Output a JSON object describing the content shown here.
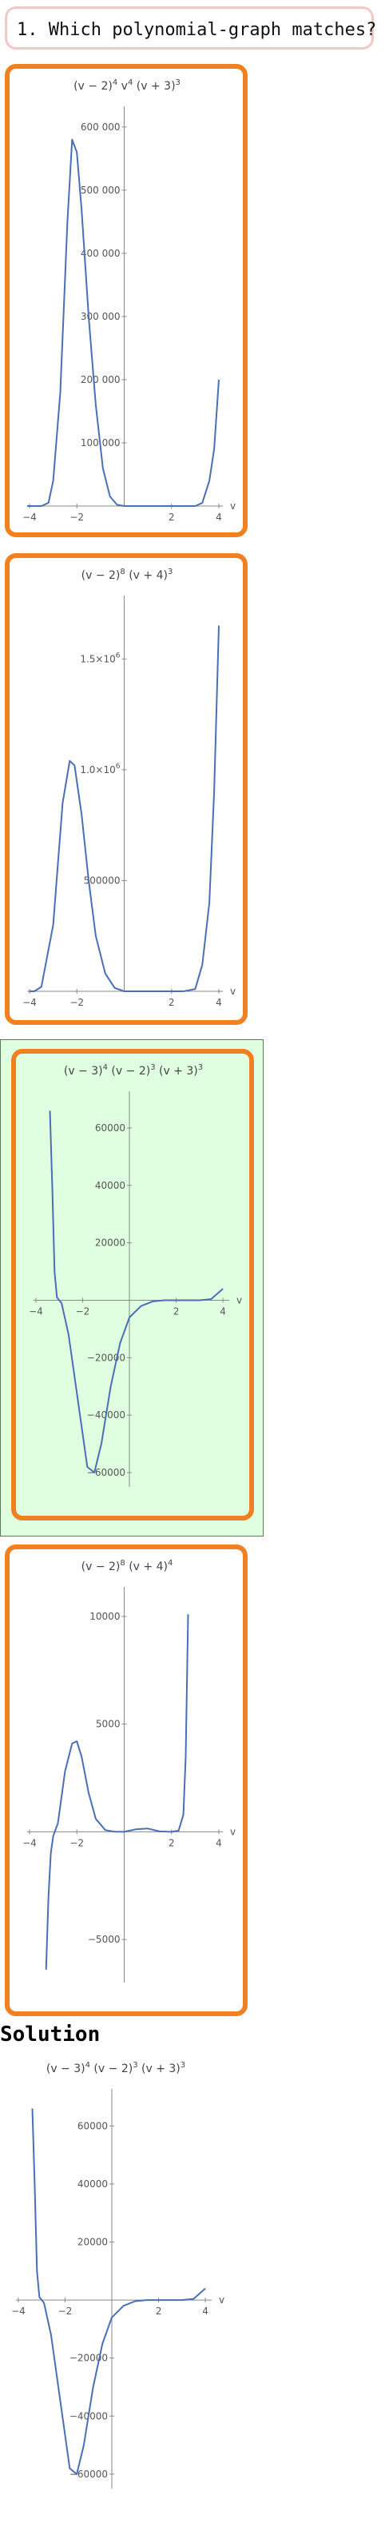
{
  "question": {
    "text": "1. Which polynomial-graph matches?"
  },
  "solution": {
    "heading": "Solution"
  },
  "colors": {
    "card_border": "#f08020",
    "selected_bg": "#e0ffe0",
    "curve": "#4a6fb5",
    "question_border": "#f4c7c7"
  },
  "chart_data": [
    {
      "type": "line",
      "title_base": [
        "(v − 2)",
        "4",
        " v",
        "4",
        " (v + 3)",
        "3"
      ],
      "xlabel": "v",
      "x_ticks": [
        "−4",
        "−2",
        "2",
        "4"
      ],
      "y_ticks": [
        "100 000",
        "200 000",
        "300 000",
        "400 000",
        "500 000",
        "600 000"
      ],
      "series": [
        {
          "x": [
            -4.1,
            -3.8,
            -3.5,
            -3.2,
            -3.0,
            -2.7,
            -2.4,
            -2.2,
            -2.0,
            -1.8,
            -1.5,
            -1.2,
            -0.9,
            -0.6,
            -0.3,
            0,
            0.5,
            1,
            1.5,
            2,
            2.5,
            3,
            3.3,
            3.6,
            3.8,
            4.0
          ],
          "y": [
            0,
            0,
            0,
            5000,
            40000,
            180000,
            450000,
            580000,
            560000,
            470000,
            300000,
            160000,
            60000,
            15000,
            2000,
            0,
            0,
            0,
            0,
            0,
            0,
            0,
            5000,
            40000,
            90000,
            200000
          ]
        }
      ],
      "xlim": [
        -4.1,
        4.0
      ],
      "ylim": [
        0,
        620000
      ]
    },
    {
      "type": "line",
      "title_base": [
        "(v − 2)",
        "8",
        " (v + 4)",
        "3"
      ],
      "xlabel": "v",
      "x_ticks": [
        "−4",
        "−2",
        "2",
        "4"
      ],
      "y_ticks": [
        "500000",
        "1.0×10",
        "1.5×10"
      ],
      "series": [
        {
          "x": [
            -4,
            -3.8,
            -3.5,
            -3.0,
            -2.6,
            -2.3,
            -2.1,
            -1.8,
            -1.5,
            -1.2,
            -0.8,
            -0.4,
            0,
            0.5,
            1,
            1.5,
            2,
            2.5,
            3.0,
            3.3,
            3.6,
            3.8,
            4.0
          ],
          "y": [
            0,
            0,
            20000,
            300000,
            850000,
            1040000,
            1020000,
            800000,
            500000,
            250000,
            80000,
            15000,
            0,
            0,
            0,
            0,
            0,
            0,
            10000,
            120000,
            400000,
            900000,
            1650000
          ]
        }
      ],
      "xlim": [
        -4.1,
        4.0
      ],
      "ylim": [
        0,
        1750000
      ]
    },
    {
      "type": "line",
      "title_base": [
        "(v − 3)",
        "4",
        " (v − 2)",
        "3",
        " (v + 3)",
        "3"
      ],
      "xlabel": "v",
      "x_ticks": [
        "−4",
        "−2",
        "2",
        "4"
      ],
      "y_ticks": [
        "−60000",
        "−40000",
        "−20000",
        "20000",
        "40000",
        "60000"
      ],
      "series": [
        {
          "x": [
            -3.4,
            -3.3,
            -3.2,
            -3.1,
            -3.0,
            -2.9,
            -2.6,
            -2.2,
            -1.8,
            -1.5,
            -1.2,
            -0.8,
            -0.4,
            0,
            0.5,
            1,
            1.5,
            2,
            2.5,
            3,
            3.5,
            4.0
          ],
          "y": [
            66000,
            40000,
            10000,
            1000,
            0,
            -1000,
            -12000,
            -35000,
            -58000,
            -60000,
            -50000,
            -30000,
            -15000,
            -6000,
            -2000,
            -400,
            -10,
            0,
            0,
            0,
            400,
            4000
          ]
        }
      ],
      "xlim": [
        -4.1,
        4.1
      ],
      "ylim": [
        -65000,
        70000
      ]
    },
    {
      "type": "line",
      "title_base": [
        "(v − 2)",
        "8",
        " (v + 4)",
        "4"
      ],
      "xlabel": "v",
      "x_ticks": [
        "−4",
        "−2",
        "2",
        "4"
      ],
      "y_ticks": [
        "−5000",
        "5000",
        "10000"
      ],
      "series": [
        {
          "x": [
            -3.3,
            -3.2,
            -3.1,
            -3.0,
            -2.8,
            -2.5,
            -2.2,
            -2.0,
            -1.8,
            -1.5,
            -1.2,
            -0.8,
            -0.4,
            0,
            0.5,
            1,
            1.5,
            2,
            2.3,
            2.5,
            2.6,
            2.7
          ],
          "y": [
            -6400,
            -3000,
            -1000,
            -200,
            400,
            2800,
            4100,
            4200,
            3500,
            1800,
            600,
            80,
            5,
            0,
            120,
            150,
            20,
            0,
            50,
            800,
            3500,
            10100
          ]
        }
      ],
      "xlim": [
        -4.1,
        4.0
      ],
      "ylim": [
        -7000,
        11000
      ]
    },
    {
      "type": "line",
      "title_base": [
        "(v − 3)",
        "4",
        " (v − 2)",
        "3",
        " (v + 3)",
        "3"
      ],
      "xlabel": "v",
      "x_ticks": [
        "−4",
        "−2",
        "2",
        "4"
      ],
      "y_ticks": [
        "−60000",
        "−40000",
        "−20000",
        "20000",
        "40000",
        "60000"
      ],
      "series": [
        {
          "x": [
            -3.4,
            -3.3,
            -3.2,
            -3.1,
            -3.0,
            -2.9,
            -2.6,
            -2.2,
            -1.8,
            -1.5,
            -1.2,
            -0.8,
            -0.4,
            0,
            0.5,
            1,
            1.5,
            2,
            2.5,
            3,
            3.5,
            4.0
          ],
          "y": [
            66000,
            40000,
            10000,
            1000,
            0,
            -1000,
            -12000,
            -35000,
            -58000,
            -60000,
            -50000,
            -30000,
            -15000,
            -6000,
            -2000,
            -400,
            -10,
            0,
            0,
            0,
            400,
            4000
          ]
        }
      ],
      "xlim": [
        -4.1,
        4.1
      ],
      "ylim": [
        -65000,
        70000
      ]
    }
  ]
}
